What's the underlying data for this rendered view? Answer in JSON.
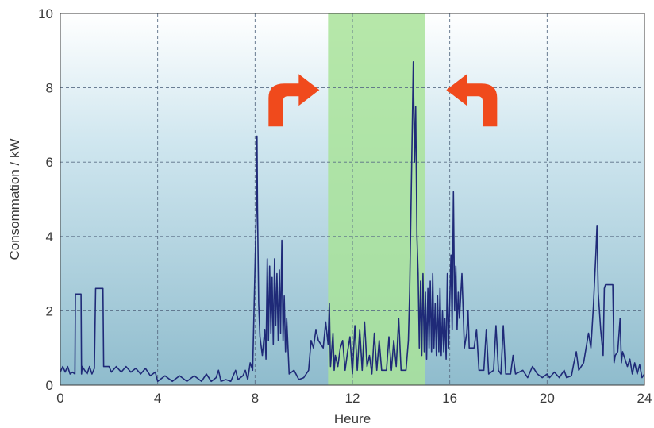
{
  "chart_data": {
    "type": "line",
    "title": "",
    "xlabel": "Heure",
    "ylabel": "Consommation / kW",
    "xlim": [
      0,
      24
    ],
    "ylim": [
      0,
      10
    ],
    "xticks": [
      0,
      4,
      8,
      12,
      16,
      20,
      24
    ],
    "yticks": [
      0,
      2,
      4,
      6,
      8,
      10
    ],
    "grid": true,
    "legend": "none",
    "highlight_band": {
      "x_from": 11,
      "x_to": 15,
      "color": "#a9e39a"
    },
    "annotations": [
      {
        "type": "curved-arrow",
        "direction": "right",
        "color": "#f04a1c",
        "near_x": 9.5,
        "near_y": 7.9
      },
      {
        "type": "curved-arrow",
        "direction": "left",
        "color": "#f04a1c",
        "near_x": 17,
        "near_y": 7.9
      }
    ],
    "colors": {
      "line": "#1f2a78",
      "background_top": "#ffffff",
      "background_bottom": "#8fbccd"
    },
    "series": [
      {
        "values": [
          [
            0.0,
            0.35
          ],
          [
            0.1,
            0.5
          ],
          [
            0.2,
            0.35
          ],
          [
            0.3,
            0.5
          ],
          [
            0.4,
            0.3
          ],
          [
            0.5,
            0.35
          ],
          [
            0.6,
            0.3
          ],
          [
            0.62,
            2.45
          ],
          [
            0.85,
            2.45
          ],
          [
            0.87,
            0.3
          ],
          [
            0.9,
            0.5
          ],
          [
            1.1,
            0.3
          ],
          [
            1.2,
            0.5
          ],
          [
            1.3,
            0.3
          ],
          [
            1.4,
            0.45
          ],
          [
            1.45,
            2.6
          ],
          [
            1.75,
            2.6
          ],
          [
            1.78,
            0.5
          ],
          [
            2.0,
            0.5
          ],
          [
            2.1,
            0.35
          ],
          [
            2.3,
            0.5
          ],
          [
            2.5,
            0.35
          ],
          [
            2.7,
            0.5
          ],
          [
            2.9,
            0.35
          ],
          [
            3.1,
            0.45
          ],
          [
            3.3,
            0.3
          ],
          [
            3.5,
            0.45
          ],
          [
            3.7,
            0.25
          ],
          [
            3.9,
            0.35
          ],
          [
            4.0,
            0.1
          ],
          [
            4.3,
            0.25
          ],
          [
            4.6,
            0.1
          ],
          [
            4.9,
            0.25
          ],
          [
            5.2,
            0.1
          ],
          [
            5.5,
            0.25
          ],
          [
            5.8,
            0.1
          ],
          [
            6.0,
            0.3
          ],
          [
            6.2,
            0.1
          ],
          [
            6.4,
            0.2
          ],
          [
            6.5,
            0.4
          ],
          [
            6.6,
            0.1
          ],
          [
            6.8,
            0.15
          ],
          [
            7.0,
            0.1
          ],
          [
            7.2,
            0.4
          ],
          [
            7.3,
            0.15
          ],
          [
            7.5,
            0.25
          ],
          [
            7.6,
            0.4
          ],
          [
            7.7,
            0.15
          ],
          [
            7.8,
            0.6
          ],
          [
            7.9,
            0.4
          ],
          [
            7.95,
            1.8
          ],
          [
            8.0,
            3.2
          ],
          [
            8.05,
            4.7
          ],
          [
            8.08,
            6.7
          ],
          [
            8.1,
            4.8
          ],
          [
            8.15,
            2.2
          ],
          [
            8.2,
            1.3
          ],
          [
            8.3,
            0.8
          ],
          [
            8.4,
            1.5
          ],
          [
            8.45,
            0.7
          ],
          [
            8.5,
            3.4
          ],
          [
            8.55,
            1.2
          ],
          [
            8.6,
            3.2
          ],
          [
            8.65,
            1.4
          ],
          [
            8.7,
            2.9
          ],
          [
            8.75,
            1.1
          ],
          [
            8.8,
            3.4
          ],
          [
            8.85,
            1.6
          ],
          [
            8.9,
            3.0
          ],
          [
            8.95,
            1.2
          ],
          [
            9.0,
            3.1
          ],
          [
            9.05,
            1.4
          ],
          [
            9.1,
            3.9
          ],
          [
            9.15,
            1.2
          ],
          [
            9.2,
            2.4
          ],
          [
            9.25,
            0.9
          ],
          [
            9.3,
            1.8
          ],
          [
            9.4,
            0.3
          ],
          [
            9.6,
            0.4
          ],
          [
            9.8,
            0.15
          ],
          [
            10.0,
            0.2
          ],
          [
            10.2,
            0.4
          ],
          [
            10.3,
            1.2
          ],
          [
            10.4,
            1.0
          ],
          [
            10.5,
            1.5
          ],
          [
            10.6,
            1.2
          ],
          [
            10.8,
            1.0
          ],
          [
            10.9,
            1.7
          ],
          [
            11.0,
            1.1
          ],
          [
            11.05,
            2.2
          ],
          [
            11.1,
            0.5
          ],
          [
            11.2,
            1.4
          ],
          [
            11.25,
            0.4
          ],
          [
            11.3,
            0.8
          ],
          [
            11.4,
            0.5
          ],
          [
            11.5,
            1.0
          ],
          [
            11.6,
            1.2
          ],
          [
            11.7,
            0.4
          ],
          [
            11.8,
            0.9
          ],
          [
            11.9,
            1.3
          ],
          [
            12.0,
            0.3
          ],
          [
            12.1,
            1.6
          ],
          [
            12.2,
            0.4
          ],
          [
            12.3,
            1.5
          ],
          [
            12.4,
            0.4
          ],
          [
            12.5,
            1.7
          ],
          [
            12.6,
            0.5
          ],
          [
            12.7,
            0.8
          ],
          [
            12.8,
            0.3
          ],
          [
            12.9,
            1.4
          ],
          [
            13.0,
            0.4
          ],
          [
            13.1,
            1.2
          ],
          [
            13.2,
            0.4
          ],
          [
            13.4,
            0.4
          ],
          [
            13.5,
            1.3
          ],
          [
            13.6,
            0.4
          ],
          [
            13.7,
            1.2
          ],
          [
            13.8,
            0.5
          ],
          [
            13.9,
            1.8
          ],
          [
            14.0,
            0.4
          ],
          [
            14.1,
            0.4
          ],
          [
            14.2,
            0.4
          ],
          [
            14.3,
            1.2
          ],
          [
            14.35,
            2.5
          ],
          [
            14.4,
            4.5
          ],
          [
            14.45,
            6.5
          ],
          [
            14.5,
            8.7
          ],
          [
            14.55,
            6.0
          ],
          [
            14.6,
            7.5
          ],
          [
            14.65,
            4.0
          ],
          [
            14.7,
            3.0
          ],
          [
            14.75,
            1.0
          ],
          [
            14.8,
            2.8
          ],
          [
            14.85,
            0.8
          ],
          [
            14.9,
            3.0
          ],
          [
            14.95,
            0.9
          ],
          [
            15.0,
            2.5
          ],
          [
            15.05,
            0.7
          ],
          [
            15.1,
            2.6
          ],
          [
            15.15,
            1.0
          ],
          [
            15.2,
            2.8
          ],
          [
            15.25,
            0.9
          ],
          [
            15.3,
            3.0
          ],
          [
            15.35,
            1.0
          ],
          [
            15.4,
            2.2
          ],
          [
            15.45,
            0.8
          ],
          [
            15.5,
            2.4
          ],
          [
            15.55,
            0.9
          ],
          [
            15.6,
            2.6
          ],
          [
            15.65,
            0.8
          ],
          [
            15.7,
            2.0
          ],
          [
            15.75,
            0.9
          ],
          [
            15.8,
            1.8
          ],
          [
            15.85,
            0.7
          ],
          [
            15.9,
            3.0
          ],
          [
            15.95,
            1.0
          ],
          [
            16.0,
            2.3
          ],
          [
            16.05,
            3.5
          ],
          [
            16.1,
            1.5
          ],
          [
            16.15,
            5.2
          ],
          [
            16.2,
            2.0
          ],
          [
            16.25,
            3.2
          ],
          [
            16.3,
            1.5
          ],
          [
            16.35,
            2.5
          ],
          [
            16.4,
            1.8
          ],
          [
            16.5,
            3.0
          ],
          [
            16.6,
            1.0
          ],
          [
            16.7,
            1.4
          ],
          [
            16.75,
            2.0
          ],
          [
            16.8,
            1.0
          ],
          [
            17.0,
            1.0
          ],
          [
            17.1,
            1.5
          ],
          [
            17.2,
            0.4
          ],
          [
            17.4,
            0.4
          ],
          [
            17.5,
            1.5
          ],
          [
            17.6,
            0.3
          ],
          [
            17.8,
            0.4
          ],
          [
            17.9,
            1.6
          ],
          [
            18.0,
            0.4
          ],
          [
            18.1,
            0.3
          ],
          [
            18.2,
            1.6
          ],
          [
            18.3,
            0.3
          ],
          [
            18.5,
            0.3
          ],
          [
            18.6,
            0.8
          ],
          [
            18.7,
            0.3
          ],
          [
            19.0,
            0.4
          ],
          [
            19.2,
            0.2
          ],
          [
            19.4,
            0.5
          ],
          [
            19.6,
            0.3
          ],
          [
            19.8,
            0.2
          ],
          [
            20.0,
            0.3
          ],
          [
            20.1,
            0.2
          ],
          [
            20.3,
            0.35
          ],
          [
            20.5,
            0.2
          ],
          [
            20.7,
            0.4
          ],
          [
            20.8,
            0.2
          ],
          [
            21.0,
            0.25
          ],
          [
            21.1,
            0.6
          ],
          [
            21.2,
            0.9
          ],
          [
            21.3,
            0.4
          ],
          [
            21.5,
            0.6
          ],
          [
            21.6,
            1.0
          ],
          [
            21.7,
            1.4
          ],
          [
            21.8,
            1.0
          ],
          [
            21.9,
            2.1
          ],
          [
            22.0,
            3.5
          ],
          [
            22.05,
            4.3
          ],
          [
            22.1,
            2.5
          ],
          [
            22.2,
            1.5
          ],
          [
            22.3,
            0.8
          ],
          [
            22.35,
            2.6
          ],
          [
            22.4,
            2.7
          ],
          [
            22.7,
            2.7
          ],
          [
            22.75,
            0.6
          ],
          [
            22.8,
            0.8
          ],
          [
            22.9,
            0.9
          ],
          [
            23.0,
            1.8
          ],
          [
            23.05,
            0.6
          ],
          [
            23.1,
            0.9
          ],
          [
            23.2,
            0.7
          ],
          [
            23.3,
            0.5
          ],
          [
            23.4,
            0.7
          ],
          [
            23.5,
            0.3
          ],
          [
            23.6,
            0.6
          ],
          [
            23.7,
            0.3
          ],
          [
            23.8,
            0.55
          ],
          [
            23.9,
            0.2
          ],
          [
            24.0,
            0.3
          ]
        ]
      }
    ]
  }
}
